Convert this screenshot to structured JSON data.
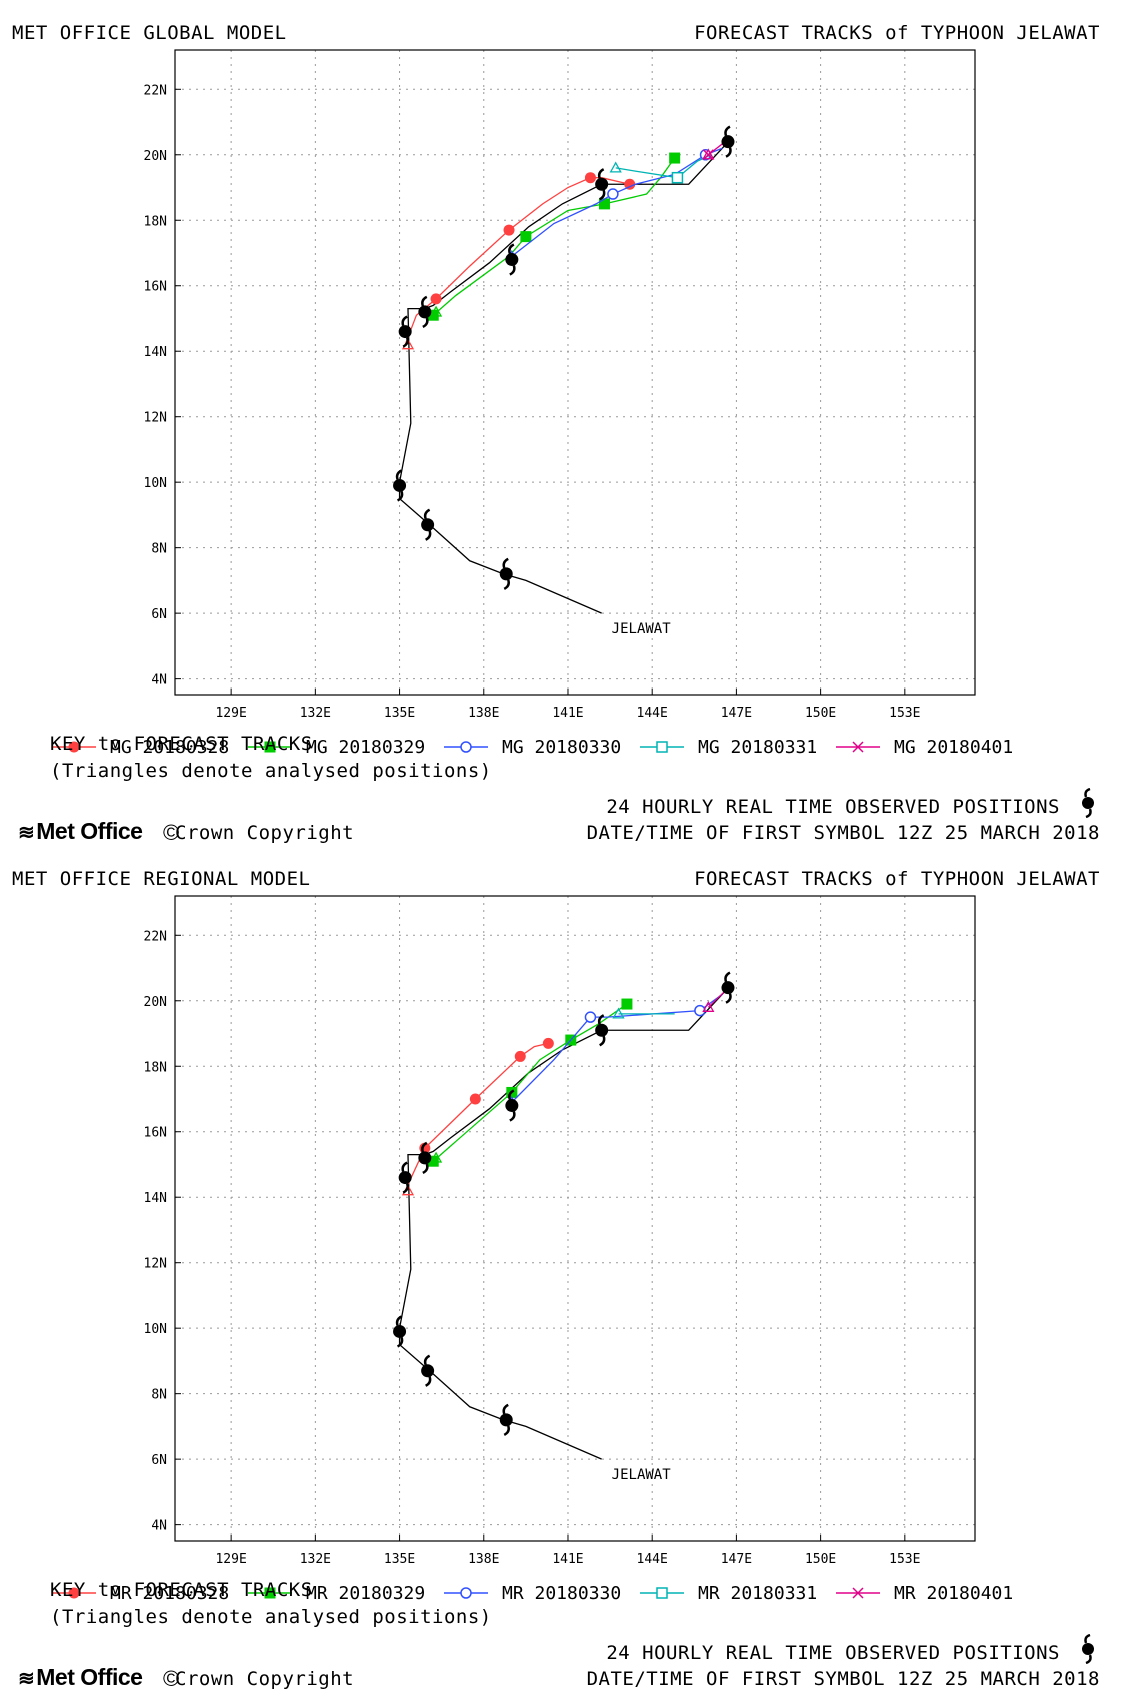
{
  "obs_symbol": "typhoon-symbol",
  "chart_data": [
    {
      "type": "line",
      "model_title": "MET OFFICE GLOBAL MODEL",
      "forecast_title": "FORECAST TRACKS of TYPHOON JELAWAT",
      "storm_label": "JELAWAT",
      "xlim": [
        127,
        155.5
      ],
      "ylim": [
        3.5,
        23.2
      ],
      "xticks": [
        "129E",
        "132E",
        "135E",
        "138E",
        "141E",
        "144E",
        "147E",
        "150E",
        "153E"
      ],
      "yticks": [
        "4N",
        "6N",
        "8N",
        "10N",
        "12N",
        "14N",
        "16N",
        "18N",
        "20N",
        "22N"
      ],
      "grid": true,
      "observed_track": {
        "points": [
          [
            142.2,
            6.0
          ],
          [
            139.5,
            7.0
          ],
          [
            138.7,
            7.2
          ],
          [
            137.5,
            7.6
          ],
          [
            136.2,
            8.6
          ],
          [
            135.0,
            9.5
          ],
          [
            135.0,
            10.0
          ],
          [
            135.4,
            11.8
          ],
          [
            135.3,
            15.3
          ],
          [
            135.9,
            15.3
          ],
          [
            136.2,
            15.4
          ],
          [
            136.8,
            15.8
          ],
          [
            138.2,
            16.7
          ],
          [
            139.6,
            17.8
          ],
          [
            140.8,
            18.5
          ],
          [
            142.2,
            19.1
          ],
          [
            145.3,
            19.1
          ],
          [
            146.5,
            20.2
          ],
          [
            146.7,
            20.4
          ]
        ],
        "symbols": [
          [
            138.8,
            7.2
          ],
          [
            136.0,
            8.7
          ],
          [
            135.0,
            9.9
          ],
          [
            135.2,
            14.6
          ],
          [
            135.9,
            15.2
          ],
          [
            139.0,
            16.8
          ],
          [
            142.2,
            19.1
          ],
          [
            146.7,
            20.4
          ]
        ]
      },
      "series": [
        {
          "name": "MG 20180328",
          "color": "#ff4040",
          "marker": "circle-filled",
          "points": [
            [
              135.2,
              14.2
            ],
            [
              135.6,
              15.1
            ],
            [
              136.3,
              15.6
            ],
            [
              137.5,
              16.6
            ],
            [
              138.9,
              17.7
            ],
            [
              140.1,
              18.5
            ],
            [
              141.0,
              19.0
            ],
            [
              141.8,
              19.3
            ],
            [
              142.2,
              19.3
            ],
            [
              143.2,
              19.1
            ]
          ],
          "markers": [
            [
              136.3,
              15.6
            ],
            [
              138.9,
              17.7
            ],
            [
              141.8,
              19.3
            ],
            [
              143.2,
              19.1
            ]
          ]
        },
        {
          "name": "MG 20180329",
          "color": "#00cc00",
          "marker": "square-filled",
          "points": [
            [
              136.2,
              15.1
            ],
            [
              137.0,
              15.7
            ],
            [
              138.9,
              16.9
            ],
            [
              139.5,
              17.5
            ],
            [
              141.0,
              18.3
            ],
            [
              142.3,
              18.5
            ],
            [
              143.8,
              18.8
            ],
            [
              144.3,
              19.3
            ],
            [
              144.8,
              19.9
            ]
          ],
          "markers": [
            [
              136.2,
              15.1
            ],
            [
              139.5,
              17.5
            ],
            [
              142.3,
              18.5
            ],
            [
              144.8,
              19.9
            ]
          ]
        },
        {
          "name": "MG 20180330",
          "color": "#3050ff",
          "marker": "circle-open",
          "points": [
            [
              139.0,
              16.9
            ],
            [
              140.5,
              17.9
            ],
            [
              142.0,
              18.5
            ],
            [
              142.6,
              18.8
            ],
            [
              143.4,
              19.1
            ],
            [
              144.8,
              19.4
            ],
            [
              145.9,
              20.0
            ],
            [
              146.5,
              20.2
            ]
          ],
          "markers": [
            [
              142.6,
              18.8
            ],
            [
              145.9,
              20.0
            ]
          ]
        },
        {
          "name": "MG 20180331",
          "color": "#00b4b4",
          "marker": "square-open",
          "points": [
            [
              142.7,
              19.6
            ],
            [
              143.4,
              19.5
            ],
            [
              144.9,
              19.3
            ],
            [
              145.6,
              19.8
            ],
            [
              146.1,
              20.0
            ]
          ],
          "markers": [
            [
              144.9,
              19.3
            ]
          ]
        },
        {
          "name": "MG 20180401",
          "color": "#e0008a",
          "marker": "x",
          "points": [
            [
              146.0,
              20.0
            ],
            [
              146.6,
              20.4
            ]
          ],
          "markers": [
            [
              146.0,
              20.0
            ]
          ]
        }
      ],
      "analysed_triangles": [
        [
          135.3,
          14.2
        ],
        [
          136.3,
          15.2
        ],
        [
          139.0,
          16.9
        ],
        [
          142.7,
          19.6
        ],
        [
          146.0,
          20.0
        ]
      ],
      "key_title": "KEY to FORECAST TRACKS",
      "key_note": "(Triangles denote analysed positions)",
      "obs_text": "24 HOURLY REAL TIME OBSERVED POSITIONS",
      "date_text": "DATE/TIME OF FIRST SYMBOL 12Z 25 MARCH 2018",
      "logo_text": "Met Office",
      "copyright_text": "Crown Copyright"
    },
    {
      "type": "line",
      "model_title": "MET OFFICE REGIONAL MODEL",
      "forecast_title": "FORECAST TRACKS of TYPHOON JELAWAT",
      "storm_label": "JELAWAT",
      "xlim": [
        127,
        155.5
      ],
      "ylim": [
        3.5,
        23.2
      ],
      "xticks": [
        "129E",
        "132E",
        "135E",
        "138E",
        "141E",
        "144E",
        "147E",
        "150E",
        "153E"
      ],
      "yticks": [
        "4N",
        "6N",
        "8N",
        "10N",
        "12N",
        "14N",
        "16N",
        "18N",
        "20N",
        "22N"
      ],
      "grid": true,
      "observed_track": {
        "points": [
          [
            142.2,
            6.0
          ],
          [
            139.5,
            7.0
          ],
          [
            138.7,
            7.2
          ],
          [
            137.5,
            7.6
          ],
          [
            136.2,
            8.6
          ],
          [
            135.0,
            9.5
          ],
          [
            135.0,
            10.0
          ],
          [
            135.4,
            11.8
          ],
          [
            135.3,
            15.3
          ],
          [
            135.9,
            15.3
          ],
          [
            136.2,
            15.4
          ],
          [
            136.8,
            15.8
          ],
          [
            138.2,
            16.7
          ],
          [
            139.6,
            17.8
          ],
          [
            140.8,
            18.5
          ],
          [
            142.2,
            19.1
          ],
          [
            145.3,
            19.1
          ],
          [
            146.5,
            20.2
          ],
          [
            146.7,
            20.4
          ]
        ],
        "symbols": [
          [
            138.8,
            7.2
          ],
          [
            136.0,
            8.7
          ],
          [
            135.0,
            9.9
          ],
          [
            135.2,
            14.6
          ],
          [
            135.9,
            15.2
          ],
          [
            139.0,
            16.8
          ],
          [
            142.2,
            19.1
          ],
          [
            146.7,
            20.4
          ]
        ]
      },
      "series": [
        {
          "name": "MR 20180328",
          "color": "#ff4040",
          "marker": "circle-filled",
          "points": [
            [
              135.2,
              14.2
            ],
            [
              135.9,
              15.5
            ],
            [
              137.7,
              17.0
            ],
            [
              139.3,
              18.3
            ],
            [
              139.8,
              18.6
            ],
            [
              140.3,
              18.7
            ]
          ],
          "markers": [
            [
              135.9,
              15.5
            ],
            [
              137.7,
              17.0
            ],
            [
              139.3,
              18.3
            ],
            [
              140.3,
              18.7
            ]
          ]
        },
        {
          "name": "MR 20180329",
          "color": "#00cc00",
          "marker": "square-filled",
          "points": [
            [
              136.2,
              15.1
            ],
            [
              137.0,
              15.7
            ],
            [
              139.0,
              17.2
            ],
            [
              140.0,
              18.2
            ],
            [
              141.1,
              18.8
            ],
            [
              142.1,
              19.3
            ],
            [
              143.1,
              19.9
            ]
          ],
          "markers": [
            [
              136.2,
              15.1
            ],
            [
              139.0,
              17.2
            ],
            [
              141.1,
              18.8
            ],
            [
              143.1,
              19.9
            ]
          ]
        },
        {
          "name": "MR 20180330",
          "color": "#3050ff",
          "marker": "circle-open",
          "points": [
            [
              139.0,
              16.9
            ],
            [
              140.5,
              18.2
            ],
            [
              141.8,
              19.5
            ],
            [
              142.4,
              19.5
            ],
            [
              145.7,
              19.7
            ],
            [
              146.5,
              20.2
            ]
          ],
          "markers": [
            [
              141.8,
              19.5
            ],
            [
              145.7,
              19.7
            ]
          ]
        },
        {
          "name": "MR 20180331",
          "color": "#00b4b4",
          "marker": "square-open",
          "points": [
            [
              142.8,
              19.6
            ],
            [
              144.8,
              19.6
            ]
          ],
          "markers": []
        },
        {
          "name": "MR 20180401",
          "color": "#e0008a",
          "marker": "x",
          "points": [
            [
              146.0,
              19.8
            ],
            [
              146.6,
              20.3
            ]
          ],
          "markers": []
        }
      ],
      "analysed_triangles": [
        [
          135.3,
          14.2
        ],
        [
          136.3,
          15.2
        ],
        [
          139.0,
          16.9
        ],
        [
          142.8,
          19.6
        ],
        [
          146.0,
          19.8
        ]
      ],
      "key_title": "KEY to FORECAST TRACKS",
      "key_note": "(Triangles denote analysed positions)",
      "obs_text": "24 HOURLY REAL TIME OBSERVED POSITIONS",
      "date_text": "DATE/TIME OF FIRST SYMBOL 12Z 25 MARCH 2018",
      "logo_text": "Met Office",
      "copyright_text": "Crown Copyright"
    }
  ]
}
